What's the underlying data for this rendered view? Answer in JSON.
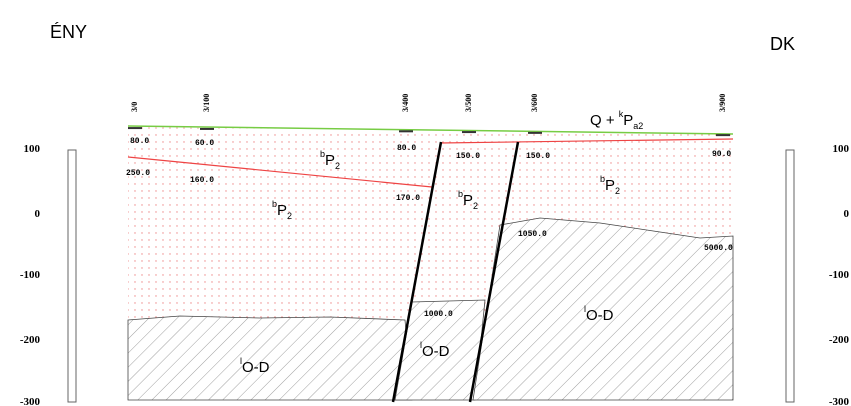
{
  "header": {
    "left": "ÉNY",
    "right": "DK"
  },
  "scale": {
    "left": [
      "100",
      "0",
      "-100",
      "-200",
      "-300"
    ],
    "right": [
      "100",
      "0",
      "-100",
      "-200",
      "-300"
    ]
  },
  "wells": [
    "3/0",
    "3/100",
    "3/400",
    "3/500",
    "3/600",
    "3/900"
  ],
  "depths": [
    "80.0",
    "60.0",
    "80.0",
    "150.0",
    "150.0",
    "90.0",
    "250.0",
    "160.0",
    "170.0",
    "1050.0",
    "5000.0",
    "1000.0"
  ],
  "units": [
    {
      "pre": "Q + ",
      "sup": "k",
      "main": "P",
      "sub": "a2"
    },
    {
      "sup": "b",
      "main": "P",
      "sub": "2"
    },
    {
      "sup": "b",
      "main": "P",
      "sub": "2"
    },
    {
      "sup": "b",
      "main": "P",
      "sub": "2"
    },
    {
      "sup": "b",
      "main": "P",
      "sub": "2"
    },
    {
      "sup": "l",
      "main": "O-D"
    },
    {
      "sup": "l",
      "main": "O-D"
    },
    {
      "sup": "l",
      "main": "O-D"
    }
  ]
}
